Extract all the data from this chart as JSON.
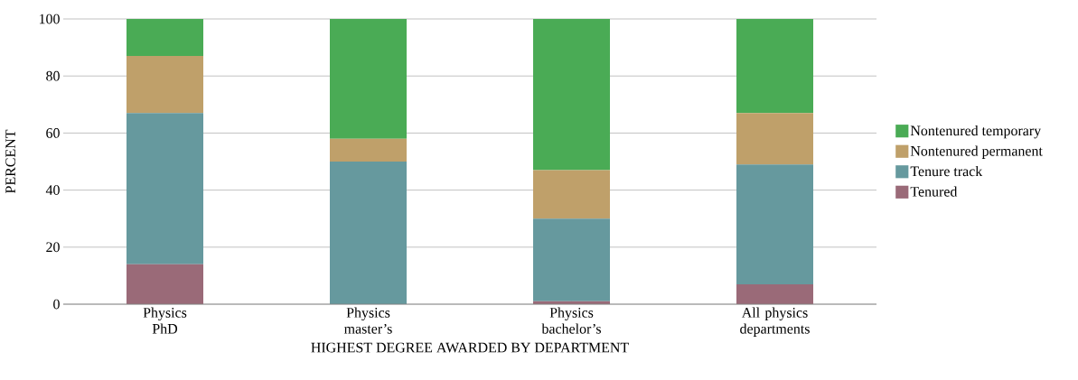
{
  "chart_data": {
    "type": "bar",
    "stacked": true,
    "xlabel": "HIGHEST DEGREE AWARDED BY DEPARTMENT",
    "ylabel": "PERCENT",
    "categories": [
      "Physics PhD",
      "Physics master’s",
      "Physics bachelor’s",
      "All physics departments"
    ],
    "series": [
      {
        "name": "Tenured",
        "color": "#9a6a78",
        "values": [
          14,
          0,
          1,
          7
        ]
      },
      {
        "name": "Tenure track",
        "color": "#66999e",
        "values": [
          53,
          50,
          29,
          42
        ]
      },
      {
        "name": "Nontenured permanent",
        "color": "#bfa06a",
        "values": [
          20,
          8,
          17,
          18
        ]
      },
      {
        "name": "Nontenured temporary",
        "color": "#4aab55",
        "values": [
          13,
          42,
          53,
          33
        ]
      }
    ],
    "ylim": [
      0,
      100
    ],
    "yticks": [
      0,
      20,
      40,
      60,
      80,
      100
    ],
    "grid": "y",
    "legend": "right"
  }
}
